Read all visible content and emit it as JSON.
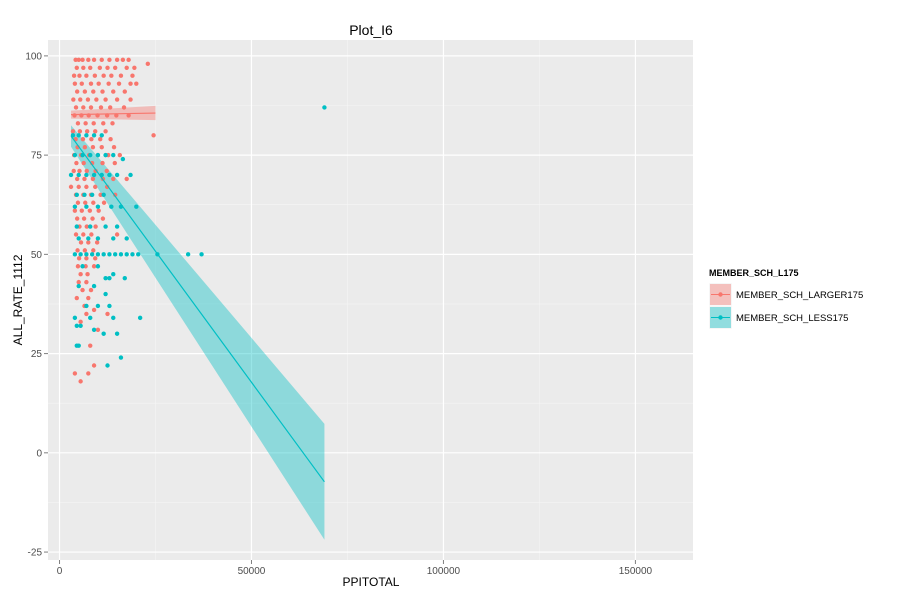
{
  "chart_data": {
    "type": "scatter",
    "title": "Plot_I6",
    "xlabel": "PPITOTAL",
    "ylabel": "ALL_RATE_1112",
    "xlim": [
      -3000,
      165000
    ],
    "ylim": [
      -27,
      104
    ],
    "x_ticks": [
      0,
      50000,
      100000,
      150000
    ],
    "x_tick_labels": [
      "0",
      "50000",
      "100000",
      "150000"
    ],
    "y_ticks": [
      -25,
      0,
      25,
      50,
      75,
      100
    ],
    "y_tick_labels": [
      "-25",
      "0",
      "25",
      "50",
      "75",
      "100"
    ],
    "grid": true,
    "legend": {
      "title": "MEMBER_SCH_L175",
      "position": "right",
      "entries": [
        "MEMBER_SCH_LARGER175",
        "MEMBER_SCH_LESS175"
      ]
    },
    "series": [
      {
        "name": "MEMBER_SCH_LARGER175",
        "color": "#F8766D",
        "points": [
          [
            4200,
            99
          ],
          [
            5000,
            99
          ],
          [
            6000,
            99
          ],
          [
            7500,
            99
          ],
          [
            9000,
            99
          ],
          [
            11000,
            99
          ],
          [
            13000,
            99
          ],
          [
            15000,
            99
          ],
          [
            16500,
            99
          ],
          [
            18000,
            99
          ],
          [
            4500,
            97
          ],
          [
            6200,
            97
          ],
          [
            8000,
            97
          ],
          [
            10500,
            97
          ],
          [
            12500,
            97
          ],
          [
            14500,
            97
          ],
          [
            17500,
            97
          ],
          [
            19500,
            97
          ],
          [
            23000,
            98
          ],
          [
            3800,
            95
          ],
          [
            5200,
            95
          ],
          [
            7000,
            95
          ],
          [
            9200,
            95
          ],
          [
            11500,
            95
          ],
          [
            13500,
            95
          ],
          [
            16000,
            95
          ],
          [
            19000,
            95
          ],
          [
            4000,
            93
          ],
          [
            5800,
            93
          ],
          [
            8200,
            93
          ],
          [
            10200,
            93
          ],
          [
            12800,
            93
          ],
          [
            15500,
            93
          ],
          [
            18500,
            93
          ],
          [
            20000,
            93
          ],
          [
            4600,
            91
          ],
          [
            6600,
            91
          ],
          [
            8800,
            91
          ],
          [
            11200,
            91
          ],
          [
            14000,
            91
          ],
          [
            17000,
            91
          ],
          [
            3600,
            89
          ],
          [
            5400,
            89
          ],
          [
            7400,
            89
          ],
          [
            9600,
            89
          ],
          [
            12000,
            89
          ],
          [
            15000,
            89
          ],
          [
            18500,
            89
          ],
          [
            4300,
            87
          ],
          [
            6200,
            87
          ],
          [
            8200,
            87
          ],
          [
            10800,
            87
          ],
          [
            13200,
            87
          ],
          [
            16800,
            87
          ],
          [
            3900,
            85
          ],
          [
            5700,
            85
          ],
          [
            7600,
            85
          ],
          [
            9900,
            85
          ],
          [
            12400,
            85
          ],
          [
            14800,
            85
          ],
          [
            18000,
            85
          ],
          [
            4800,
            83
          ],
          [
            6800,
            83
          ],
          [
            8900,
            83
          ],
          [
            11400,
            83
          ],
          [
            13800,
            83
          ],
          [
            3500,
            81
          ],
          [
            5300,
            81
          ],
          [
            7200,
            81
          ],
          [
            9300,
            81
          ],
          [
            12000,
            81
          ],
          [
            24500,
            80
          ],
          [
            4200,
            79
          ],
          [
            6100,
            79
          ],
          [
            8300,
            79
          ],
          [
            10600,
            79
          ],
          [
            13300,
            79
          ],
          [
            4700,
            77
          ],
          [
            6600,
            77
          ],
          [
            8700,
            77
          ],
          [
            11000,
            77
          ],
          [
            14200,
            77
          ],
          [
            3800,
            75
          ],
          [
            5600,
            75
          ],
          [
            7700,
            75
          ],
          [
            10000,
            75
          ],
          [
            12700,
            75
          ],
          [
            15700,
            75
          ],
          [
            4400,
            73
          ],
          [
            6300,
            73
          ],
          [
            8500,
            73
          ],
          [
            11200,
            73
          ],
          [
            14400,
            73
          ],
          [
            3700,
            71
          ],
          [
            5200,
            71
          ],
          [
            7100,
            71
          ],
          [
            9400,
            71
          ],
          [
            12300,
            71
          ],
          [
            4600,
            69
          ],
          [
            6500,
            69
          ],
          [
            8700,
            69
          ],
          [
            11300,
            69
          ],
          [
            14000,
            69
          ],
          [
            17500,
            69
          ],
          [
            3000,
            67
          ],
          [
            5000,
            67
          ],
          [
            7000,
            67
          ],
          [
            9300,
            67
          ],
          [
            12400,
            67
          ],
          [
            4300,
            65
          ],
          [
            6200,
            65
          ],
          [
            8200,
            65
          ],
          [
            10700,
            65
          ],
          [
            14500,
            65
          ],
          [
            4800,
            63
          ],
          [
            6700,
            63
          ],
          [
            8800,
            63
          ],
          [
            11600,
            63
          ],
          [
            4000,
            61
          ],
          [
            5800,
            61
          ],
          [
            7900,
            61
          ],
          [
            10200,
            61
          ],
          [
            4600,
            59
          ],
          [
            6400,
            59
          ],
          [
            8600,
            59
          ],
          [
            11300,
            59
          ],
          [
            5200,
            57
          ],
          [
            7100,
            57
          ],
          [
            9400,
            57
          ],
          [
            4300,
            55
          ],
          [
            6200,
            55
          ],
          [
            8300,
            55
          ],
          [
            15000,
            55
          ],
          [
            5600,
            53
          ],
          [
            7500,
            53
          ],
          [
            9800,
            53
          ],
          [
            4700,
            51
          ],
          [
            6600,
            51
          ],
          [
            8800,
            51
          ],
          [
            5100,
            49
          ],
          [
            7000,
            49
          ],
          [
            9300,
            49
          ],
          [
            4800,
            47
          ],
          [
            6800,
            47
          ],
          [
            9000,
            47
          ],
          [
            5500,
            45
          ],
          [
            7300,
            45
          ],
          [
            5000,
            43
          ],
          [
            7000,
            43
          ],
          [
            6000,
            41
          ],
          [
            8200,
            41
          ],
          [
            4500,
            39
          ],
          [
            7500,
            39
          ],
          [
            6500,
            37
          ],
          [
            9000,
            36
          ],
          [
            7000,
            35
          ],
          [
            12500,
            35
          ],
          [
            5500,
            33
          ],
          [
            10000,
            31
          ],
          [
            8000,
            27
          ],
          [
            4000,
            20
          ],
          [
            7500,
            20
          ],
          [
            5500,
            18
          ],
          [
            9000,
            22
          ]
        ]
      },
      {
        "name": "MEMBER_SCH_LESS175",
        "color": "#00BFC4",
        "points": [
          [
            69000,
            87
          ],
          [
            3500,
            80
          ],
          [
            5000,
            80
          ],
          [
            7000,
            80
          ],
          [
            9000,
            80
          ],
          [
            11000,
            80
          ],
          [
            4000,
            75
          ],
          [
            6000,
            75
          ],
          [
            8000,
            75
          ],
          [
            10000,
            75
          ],
          [
            12000,
            75
          ],
          [
            14000,
            75
          ],
          [
            16500,
            74
          ],
          [
            3000,
            70
          ],
          [
            5000,
            70
          ],
          [
            7000,
            70
          ],
          [
            9000,
            70
          ],
          [
            11000,
            70
          ],
          [
            13000,
            70
          ],
          [
            15000,
            70
          ],
          [
            18500,
            70
          ],
          [
            4500,
            65
          ],
          [
            6500,
            65
          ],
          [
            8500,
            65
          ],
          [
            11500,
            65
          ],
          [
            4000,
            62
          ],
          [
            7000,
            62
          ],
          [
            10000,
            62
          ],
          [
            13500,
            62
          ],
          [
            16000,
            62
          ],
          [
            20000,
            62
          ],
          [
            4500,
            57
          ],
          [
            8000,
            57
          ],
          [
            12000,
            57
          ],
          [
            15000,
            57
          ],
          [
            5000,
            54
          ],
          [
            7500,
            54
          ],
          [
            10000,
            54
          ],
          [
            14000,
            54
          ],
          [
            17500,
            54
          ],
          [
            4000,
            50
          ],
          [
            5500,
            50
          ],
          [
            7000,
            50
          ],
          [
            8500,
            50
          ],
          [
            10000,
            50
          ],
          [
            11500,
            50
          ],
          [
            13000,
            50
          ],
          [
            14500,
            50
          ],
          [
            16000,
            50
          ],
          [
            17500,
            50
          ],
          [
            19000,
            50
          ],
          [
            20500,
            50
          ],
          [
            25500,
            50
          ],
          [
            33500,
            50
          ],
          [
            37000,
            50
          ],
          [
            6000,
            47
          ],
          [
            10000,
            47
          ],
          [
            14000,
            45
          ],
          [
            12000,
            44
          ],
          [
            13000,
            44
          ],
          [
            17000,
            44
          ],
          [
            5000,
            42
          ],
          [
            9000,
            42
          ],
          [
            12000,
            40
          ],
          [
            7000,
            37
          ],
          [
            10000,
            37
          ],
          [
            13000,
            37
          ],
          [
            4000,
            34
          ],
          [
            8000,
            34
          ],
          [
            14000,
            34
          ],
          [
            21000,
            34
          ],
          [
            4500,
            32
          ],
          [
            5500,
            32
          ],
          [
            9000,
            31
          ],
          [
            11500,
            30
          ],
          [
            15000,
            30
          ],
          [
            4500,
            27
          ],
          [
            5000,
            27
          ],
          [
            16000,
            24
          ],
          [
            12500,
            22
          ]
        ]
      }
    ],
    "fit_lines": [
      {
        "series": "MEMBER_SCH_LARGER175",
        "color": "#F8766D",
        "x": [
          3000,
          25000
        ],
        "y": [
          85.2,
          85.6
        ],
        "ci_upper": [
          86.2,
          87.4
        ],
        "ci_lower": [
          84.2,
          83.8
        ]
      },
      {
        "series": "MEMBER_SCH_LESS175",
        "color": "#00BFC4",
        "x": [
          3000,
          69000
        ],
        "y": [
          79.8,
          -7.3
        ],
        "ci_upper": [
          82.5,
          7.3
        ],
        "ci_lower": [
          77.1,
          -21.9
        ]
      }
    ]
  }
}
